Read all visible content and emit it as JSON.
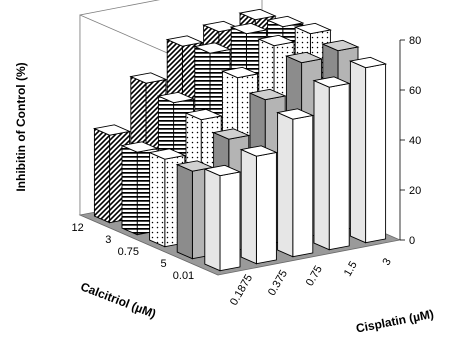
{
  "chart_data": {
    "type": "bar3d",
    "title": "",
    "ylabel": "Inhibitin of Control (%)",
    "xlabel": "Cisplatin (µM)",
    "zlabel": "Calcitriol (µM)",
    "x_categories": [
      "0.1875",
      "0.375",
      "0.75",
      "1.5",
      "3"
    ],
    "z_categories": [
      "0.01",
      "5",
      "0.75",
      "3",
      "12"
    ],
    "y_ticks": [
      "0",
      "20",
      "40",
      "60",
      "80"
    ],
    "ylim": [
      0,
      80
    ],
    "grid": false,
    "series": [
      {
        "name": "0.01",
        "pattern": "white",
        "values": [
          38,
          43,
          55,
          65,
          70
        ]
      },
      {
        "name": "5",
        "pattern": "gray",
        "values": [
          35,
          45,
          58,
          70,
          72
        ]
      },
      {
        "name": "0.75",
        "pattern": "dots",
        "values": [
          35,
          48,
          62,
          72,
          74
        ]
      },
      {
        "name": "3",
        "pattern": "horizontal-lines",
        "values": [
          33,
          50,
          67,
          72,
          72
        ]
      },
      {
        "name": "12",
        "pattern": "diagonal-hatch",
        "values": [
          35,
          53,
          65,
          68,
          70
        ]
      }
    ]
  }
}
